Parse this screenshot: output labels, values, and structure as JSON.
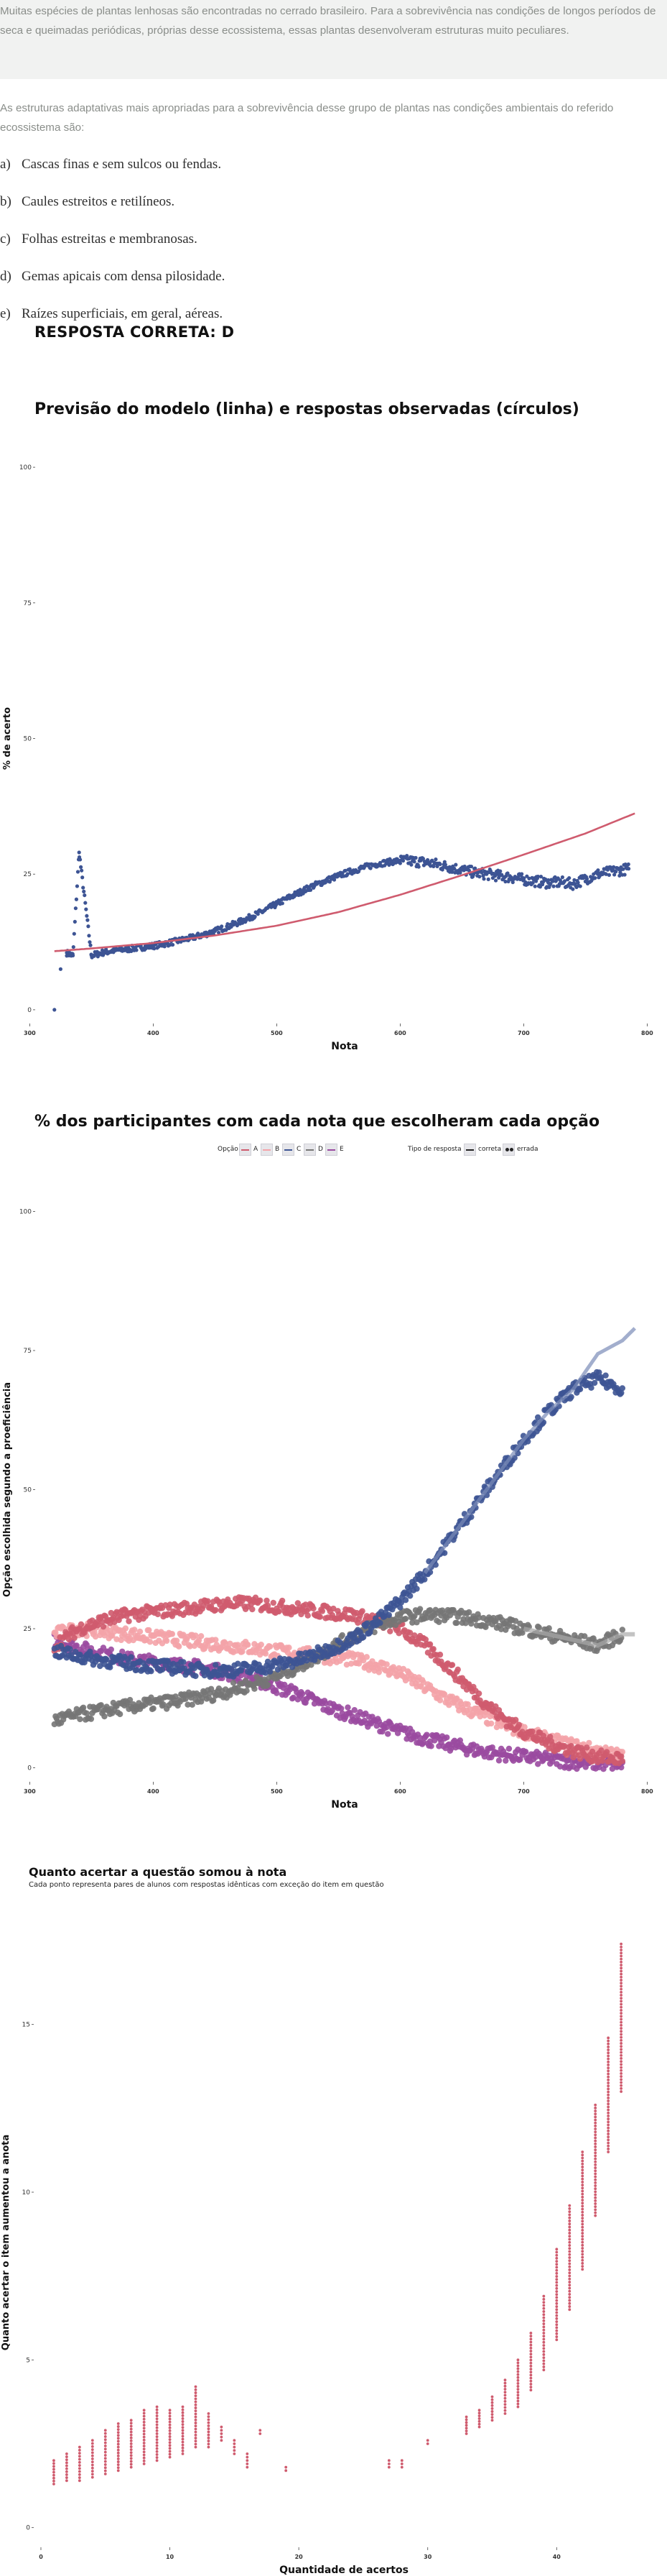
{
  "question": {
    "context": "Muitas espécies de plantas lenhosas são encontradas no cerrado brasileiro. Para a sobrevivência nas condições de longos períodos de seca e queimadas periódicas, próprias desse ecossistema, essas plantas desenvolveram estruturas muito peculiares.",
    "stem": "As estruturas adaptativas mais apropriadas para a sobrevivência desse grupo de plantas nas condições ambientais do referido ecossistema são:",
    "alternatives": [
      {
        "letter": "a)",
        "text": "Cascas finas e sem sulcos ou fendas."
      },
      {
        "letter": "b)",
        "text": "Caules estreitos e retilíneos."
      },
      {
        "letter": "c)",
        "text": "Folhas estreitas e membranosas."
      },
      {
        "letter": "d)",
        "text": "Gemas apicais com densa pilosidade."
      },
      {
        "letter": "e)",
        "text": "Raízes superficiais, em geral, aéreas."
      }
    ],
    "answer": "RESPOSTA CORRETA: D"
  },
  "colors": {
    "A": "#cf5b6e",
    "B": "#f4a3a8",
    "C": "#3d5494",
    "D": "#767676",
    "E": "#9a4aa0",
    "model_line": "#cf5b6e",
    "observed": "#3d5494",
    "point3": "#cf5b6e"
  },
  "chart_data": [
    {
      "type": "scatter",
      "title": "Previsão do modelo (linha) e respostas observadas (círculos)",
      "xlabel": "Nota",
      "ylabel": "% de acerto",
      "xlim": [
        305,
        805
      ],
      "ylim": [
        -2,
        102
      ],
      "xticks": [
        300,
        400,
        500,
        600,
        700,
        800
      ],
      "yticks": [
        0,
        25,
        50,
        75,
        100
      ],
      "model_line": {
        "x": [
          320,
          350,
          400,
          450,
          500,
          550,
          600,
          650,
          700,
          750,
          790
        ],
        "y": [
          10.8,
          11.3,
          12.3,
          13.7,
          15.5,
          18.0,
          21.2,
          24.8,
          28.6,
          32.5,
          36.2
        ]
      },
      "observed": {
        "x": [
          320,
          325,
          330,
          335,
          340,
          350,
          360,
          370,
          380,
          390,
          400,
          410,
          420,
          430,
          440,
          450,
          460,
          470,
          480,
          490,
          500,
          510,
          520,
          530,
          540,
          550,
          560,
          570,
          580,
          590,
          600,
          610,
          620,
          630,
          640,
          650,
          660,
          670,
          680,
          690,
          700,
          710,
          720,
          730,
          740,
          760,
          785
        ],
        "y": [
          0,
          7.5,
          10.5,
          10,
          29,
          10,
          10.6,
          11,
          11.2,
          11.5,
          11.8,
          12.2,
          12.7,
          13.2,
          13.8,
          14.5,
          15.3,
          16.2,
          17.2,
          18.3,
          19.5,
          20.7,
          21.8,
          22.9,
          23.8,
          24.7,
          25.5,
          26.2,
          26.8,
          27.2,
          27.5,
          27.4,
          27.2,
          26.8,
          26.3,
          25.8,
          25.3,
          25,
          24.7,
          24.4,
          24,
          23.7,
          23.4,
          23.5,
          23.2,
          25,
          26
        ]
      }
    },
    {
      "type": "scatter",
      "title": "% dos participantes com cada nota que escolheram cada opção",
      "xlabel": "Nota",
      "ylabel": "Opção escolhida segundo a proeficiência",
      "xlim": [
        305,
        805
      ],
      "ylim": [
        -2,
        102
      ],
      "xticks": [
        300,
        400,
        500,
        600,
        700,
        800
      ],
      "yticks": [
        0,
        25,
        50,
        75,
        100
      ],
      "legend": {
        "option_title": "Opção",
        "options": [
          "A",
          "B",
          "C",
          "D",
          "E"
        ],
        "type_title": "Tipo de resposta",
        "types": [
          "correta",
          "errada"
        ],
        "placement": "top"
      },
      "x": [
        320,
        340,
        360,
        380,
        400,
        420,
        440,
        460,
        480,
        500,
        520,
        540,
        560,
        580,
        600,
        620,
        640,
        660,
        680,
        700,
        720,
        740,
        760,
        780
      ],
      "series": [
        {
          "name": "A",
          "values": [
            22,
            25,
            26.5,
            27.5,
            28,
            28.5,
            29,
            29.5,
            29.5,
            29,
            28.5,
            28,
            27.5,
            26.5,
            25,
            22,
            18,
            13.5,
            9.5,
            6.5,
            4.5,
            3,
            2,
            1.5
          ]
        },
        {
          "name": "B",
          "values": [
            24,
            25,
            24.5,
            24,
            23.5,
            23,
            22.5,
            22,
            21.5,
            21,
            20.5,
            20,
            19.5,
            18.5,
            17,
            14.5,
            12,
            10,
            8,
            6.5,
            5,
            4,
            3,
            2
          ]
        },
        {
          "name": "C",
          "values": [
            21,
            20,
            19.3,
            18.8,
            18.3,
            18,
            17.5,
            17.5,
            17.8,
            18.5,
            19.5,
            21,
            23,
            26,
            30,
            35,
            41,
            47,
            53,
            59,
            64,
            68,
            70,
            68
          ]
        },
        {
          "name": "D",
          "values": [
            8.5,
            9.5,
            10.3,
            11,
            11.5,
            12,
            12.8,
            13.8,
            15,
            16.5,
            18.5,
            21,
            23.5,
            25.5,
            27,
            27.5,
            27.3,
            26.8,
            26,
            25,
            24,
            23,
            22,
            24
          ]
        },
        {
          "name": "E",
          "values": [
            23,
            21.5,
            20.5,
            19.5,
            19,
            18.5,
            18,
            17,
            16,
            14.5,
            13,
            11,
            9.5,
            8,
            6.5,
            5.2,
            4.2,
            3.2,
            2.5,
            2,
            1.5,
            1,
            0.8,
            0.6
          ]
        }
      ]
    },
    {
      "type": "scatter",
      "title": "Quanto acertar a questão somou à nota",
      "subtitle": "Cada ponto representa pares de alunos com respostas idênticas com exceção do item em questão",
      "xlabel": "Quantidade de acertos",
      "ylabel": "Quanto acertar o item aumentou a anota",
      "xlim": [
        -0.5,
        47.5
      ],
      "ylim": [
        -0.5,
        17.5
      ],
      "xticks": [
        0,
        10,
        20,
        30,
        40
      ],
      "yticks": [
        0,
        5,
        10,
        15
      ],
      "groups": [
        {
          "x": 1,
          "min": 1.3,
          "max": 2.0
        },
        {
          "x": 2,
          "min": 1.4,
          "max": 2.2
        },
        {
          "x": 3,
          "min": 1.4,
          "max": 2.4
        },
        {
          "x": 4,
          "min": 1.5,
          "max": 2.6
        },
        {
          "x": 5,
          "min": 1.6,
          "max": 2.9
        },
        {
          "x": 6,
          "min": 1.7,
          "max": 3.1
        },
        {
          "x": 7,
          "min": 1.8,
          "max": 3.2
        },
        {
          "x": 8,
          "min": 1.9,
          "max": 3.5
        },
        {
          "x": 9,
          "min": 2.0,
          "max": 3.6
        },
        {
          "x": 10,
          "min": 2.1,
          "max": 3.5
        },
        {
          "x": 11,
          "min": 2.2,
          "max": 3.6
        },
        {
          "x": 12,
          "min": 2.4,
          "max": 4.2
        },
        {
          "x": 13,
          "min": 2.4,
          "max": 3.4
        },
        {
          "x": 14,
          "min": 2.6,
          "max": 3.0
        },
        {
          "x": 15,
          "min": 2.2,
          "max": 2.6
        },
        {
          "x": 16,
          "min": 1.8,
          "max": 2.2
        },
        {
          "x": 17,
          "min": 2.8,
          "max": 2.9
        },
        {
          "x": 19,
          "min": 1.7,
          "max": 1.8
        },
        {
          "x": 27,
          "min": 1.8,
          "max": 2.0
        },
        {
          "x": 28,
          "min": 1.8,
          "max": 2.0
        },
        {
          "x": 30,
          "min": 2.5,
          "max": 2.6
        },
        {
          "x": 33,
          "min": 2.8,
          "max": 3.3
        },
        {
          "x": 34,
          "min": 3.0,
          "max": 3.5
        },
        {
          "x": 35,
          "min": 3.2,
          "max": 3.9
        },
        {
          "x": 36,
          "min": 3.4,
          "max": 4.4
        },
        {
          "x": 37,
          "min": 3.6,
          "max": 5.0
        },
        {
          "x": 38,
          "min": 4.1,
          "max": 5.8
        },
        {
          "x": 39,
          "min": 4.7,
          "max": 6.9
        },
        {
          "x": 40,
          "min": 5.6,
          "max": 8.3
        },
        {
          "x": 41,
          "min": 6.5,
          "max": 9.6
        },
        {
          "x": 42,
          "min": 7.7,
          "max": 11.2
        },
        {
          "x": 43,
          "min": 9.3,
          "max": 12.6
        },
        {
          "x": 44,
          "min": 11.2,
          "max": 14.6
        },
        {
          "x": 45,
          "min": 13.0,
          "max": 17.4
        }
      ]
    }
  ]
}
